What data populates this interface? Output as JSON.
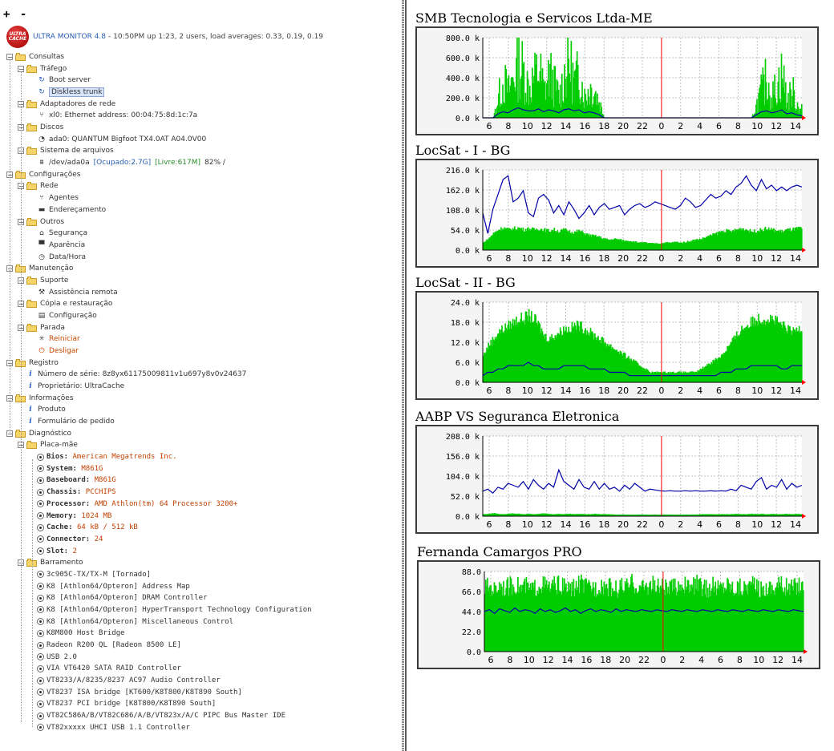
{
  "toolbar": {
    "expand_label": "+",
    "collapse_label": "-"
  },
  "header": {
    "logo_text": "ULTRA CACHE",
    "app_title": "ULTRA MONITOR 4.8",
    "status": "- 10:50PM up 1:23, 2 users, load averages: 0.33, 0.19, 0.19"
  },
  "tree": {
    "consultas": "Consultas",
    "trafego": "Tráfego",
    "bootserver": "Boot server",
    "diskless": "Diskless trunk",
    "adaptadores": "Adaptadores de rede",
    "xl0": "xl0: Ethernet address: 00:04:75:8d:1c:7a",
    "discos": "Discos",
    "ada0": "ada0: QUANTUM Bigfoot TX4.0AT A04.0V00",
    "sistema": "Sistema de arquivos",
    "fs_path": "/dev/ada0a",
    "fs_used": "[Ocupado:2.7G]",
    "fs_free": "[Livre:617M]",
    "fs_pct": "82% /",
    "configuracoes": "Configurações",
    "rede": "Rede",
    "agentes": "Agentes",
    "enderecamento": "Endereçamento",
    "outros": "Outros",
    "seguranca": "Segurança",
    "aparencia": "Aparência",
    "datahora": "Data/Hora",
    "manutencao": "Manutenção",
    "suporte": "Suporte",
    "assistencia": "Assistência remota",
    "copia": "Cópia e restauração",
    "configuracao": "Configuração",
    "parada": "Parada",
    "reiniciar": "Reiniciar",
    "desligar": "Desligar",
    "registro": "Registro",
    "serie": "Número de série: 8z8yx61175009811v1u697y8v0v24637",
    "proprietario": "Proprietário: UltraCache",
    "informacoes": "Informações",
    "produto": "Produto",
    "formulario": "Formulário de pedido",
    "diagnostico": "Diagnóstico",
    "placa": "Placa-mãe",
    "barramento": "Barramento"
  },
  "board": [
    {
      "key": "Bios:",
      "value": "American Megatrends Inc."
    },
    {
      "key": "System:",
      "value": "M861G"
    },
    {
      "key": "Baseboard:",
      "value": "M861G"
    },
    {
      "key": "Chassis:",
      "value": "PCCHIPS"
    },
    {
      "key": "Processor:",
      "value": "AMD Athlon(tm) 64 Processor 3200+"
    },
    {
      "key": "Memory:",
      "value": "1024 MB"
    },
    {
      "key": "Cache:",
      "value": "64 kB / 512 kB"
    },
    {
      "key": "Connector:",
      "value": "24"
    },
    {
      "key": "Slot:",
      "value": "2"
    }
  ],
  "bus": [
    "3c905C-TX/TX-M [Tornado]",
    "K8 [Athlon64/Opteron] Address Map",
    "K8 [Athlon64/Opteron] DRAM Controller",
    "K8 [Athlon64/Opteron] HyperTransport Technology Configuration",
    "K8 [Athlon64/Opteron] Miscellaneous Control",
    "K8M800 Host Bridge",
    "Radeon R200 QL [Radeon 8500 LE]",
    "USB 2.0",
    "VIA VT6420 SATA RAID Controller",
    "VT8233/A/8235/8237 AC97 Audio Controller",
    "VT8237 ISA bridge [KT600/K8T800/K8T890 South]",
    "VT8237 PCI bridge [K8T800/K8T890 South]",
    "VT82C586A/B/VT82C686/A/B/VT823x/A/C PIPC Bus Master IDE",
    "VT82xxxxx UHCI USB 1.1 Controller"
  ],
  "colors": {
    "in_fill": "#00cc00",
    "out_line": "#0000aa",
    "now_line": "#ff0000"
  },
  "chart_data": [
    {
      "type": "area",
      "title": "SMB Tecnologia e Servicos Ltda-ME",
      "ylim": [
        0,
        800
      ],
      "yticks": [
        "800.0 k",
        "600.0 k",
        "400.0 k",
        "200.0 k",
        "0.0 k"
      ],
      "xticks": [
        "6",
        "8",
        "10",
        "12",
        "14",
        "16",
        "18",
        "20",
        "22",
        "0",
        "2",
        "4",
        "6",
        "8",
        "10",
        "12",
        "14"
      ],
      "series": [
        {
          "profile": "bursty",
          "values": [
            0,
            0,
            0,
            300,
            520,
            380,
            600,
            760,
            650,
            420,
            560,
            700,
            380,
            620,
            480,
            300,
            620,
            780,
            500,
            650,
            300,
            420,
            380,
            200,
            0,
            0,
            0,
            0,
            0,
            0,
            0,
            0,
            0,
            0,
            0,
            0,
            0,
            0,
            0,
            0,
            0,
            0,
            0,
            0,
            0,
            0,
            0,
            0,
            0,
            0,
            0,
            0,
            0,
            0,
            200,
            400,
            560,
            300,
            480,
            620,
            250,
            380,
            180,
            140
          ]
        },
        {
          "profile": "line",
          "values": [
            0,
            0,
            0,
            40,
            60,
            50,
            80,
            100,
            80,
            70,
            70,
            90,
            60,
            80,
            70,
            50,
            80,
            90,
            70,
            80,
            50,
            60,
            50,
            30,
            0,
            0,
            0,
            0,
            0,
            0,
            0,
            0,
            0,
            0,
            0,
            0,
            0,
            0,
            0,
            0,
            0,
            0,
            0,
            0,
            0,
            0,
            0,
            0,
            0,
            0,
            0,
            0,
            0,
            0,
            30,
            60,
            70,
            50,
            60,
            80,
            40,
            50,
            30,
            20
          ]
        }
      ]
    },
    {
      "type": "area",
      "title": "LocSat - I - BG",
      "ylim": [
        0,
        216
      ],
      "yticks": [
        "216.0 k",
        "162.0 k",
        "108.0 k",
        "54.0 k",
        "0.0 k"
      ],
      "xticks": [
        "6",
        "8",
        "10",
        "12",
        "14",
        "16",
        "18",
        "20",
        "22",
        "0",
        "2",
        "4",
        "6",
        "8",
        "10",
        "12",
        "14"
      ],
      "series": [
        {
          "profile": "fill",
          "values": [
            20,
            30,
            45,
            55,
            60,
            55,
            58,
            60,
            55,
            58,
            55,
            58,
            55,
            52,
            55,
            50,
            55,
            50,
            48,
            52,
            45,
            40,
            38,
            35,
            30,
            28,
            30,
            28,
            25,
            25,
            22,
            20,
            20,
            18,
            18,
            18,
            20,
            20,
            22,
            20,
            22,
            25,
            28,
            30,
            35,
            40,
            45,
            50,
            52,
            50,
            55,
            58,
            55,
            50,
            52,
            55,
            58,
            55,
            52,
            50,
            55,
            55,
            58,
            60
          ]
        },
        {
          "profile": "line",
          "values": [
            100,
            45,
            110,
            150,
            190,
            200,
            130,
            140,
            160,
            100,
            90,
            140,
            150,
            135,
            100,
            120,
            95,
            130,
            110,
            85,
            100,
            120,
            95,
            115,
            125,
            110,
            115,
            120,
            95,
            110,
            120,
            125,
            115,
            120,
            130,
            125,
            120,
            115,
            110,
            120,
            140,
            130,
            115,
            120,
            135,
            150,
            140,
            145,
            160,
            150,
            170,
            180,
            200,
            175,
            160,
            190,
            165,
            175,
            160,
            170,
            160,
            170,
            175,
            170
          ]
        }
      ]
    },
    {
      "type": "area",
      "title": "LocSat - II - BG",
      "ylim": [
        0,
        24
      ],
      "yticks": [
        "24.0 k",
        "18.0 k",
        "12.0 k",
        "6.0 k",
        "0.0 k"
      ],
      "xticks": [
        "6",
        "8",
        "10",
        "12",
        "14",
        "16",
        "18",
        "20",
        "22",
        "0",
        "2",
        "4",
        "6",
        "8",
        "10",
        "12",
        "14"
      ],
      "series": [
        {
          "profile": "fill",
          "values": [
            8,
            11,
            13,
            15,
            16,
            17,
            18,
            19,
            19,
            20,
            19,
            17,
            14,
            13,
            14,
            15,
            16,
            16,
            17,
            17,
            16,
            15,
            14,
            13,
            12,
            11,
            10,
            9,
            8,
            7,
            6,
            5,
            4,
            3,
            3,
            3,
            3,
            3,
            3,
            3,
            3,
            3,
            3,
            4,
            5,
            6,
            7,
            8,
            10,
            12,
            14,
            16,
            17,
            18,
            19,
            19,
            19,
            19,
            18,
            17,
            16,
            15,
            16,
            17
          ]
        },
        {
          "profile": "line",
          "values": [
            2,
            3,
            3,
            4,
            4,
            5,
            5,
            5,
            5,
            6,
            5,
            5,
            4,
            4,
            4,
            4,
            5,
            5,
            5,
            5,
            5,
            4,
            4,
            4,
            4,
            3,
            3,
            3,
            3,
            2,
            2,
            2,
            2,
            2,
            2,
            2,
            2,
            2,
            2,
            2,
            2,
            2,
            2,
            2,
            2,
            2,
            2,
            3,
            3,
            3,
            4,
            4,
            4,
            5,
            5,
            5,
            5,
            5,
            5,
            4,
            4,
            5,
            5,
            5
          ]
        }
      ]
    },
    {
      "type": "area",
      "title": "AABP VS Seguranca Eletronica",
      "ylim": [
        0,
        208
      ],
      "yticks": [
        "208.0 k",
        "156.0 k",
        "104.0 k",
        "52.0 k",
        "0.0 k"
      ],
      "xticks": [
        "6",
        "8",
        "10",
        "12",
        "14",
        "16",
        "18",
        "20",
        "22",
        "0",
        "2",
        "4",
        "6",
        "8",
        "10",
        "12",
        "14"
      ],
      "series": [
        {
          "profile": "fill",
          "values": [
            5,
            6,
            8,
            6,
            5,
            6,
            7,
            6,
            5,
            6,
            5,
            6,
            7,
            6,
            5,
            6,
            5,
            6,
            5,
            6,
            5,
            5,
            6,
            5,
            5,
            5,
            4,
            4,
            4,
            4,
            4,
            4,
            4,
            4,
            4,
            4,
            4,
            4,
            4,
            4,
            4,
            4,
            4,
            5,
            5,
            5,
            5,
            5,
            5,
            5,
            6,
            5,
            5,
            6,
            5,
            6,
            5,
            6,
            5,
            5,
            6,
            5,
            6,
            5
          ]
        },
        {
          "profile": "line",
          "values": [
            65,
            70,
            60,
            75,
            70,
            85,
            80,
            75,
            90,
            70,
            95,
            80,
            70,
            85,
            75,
            120,
            90,
            80,
            70,
            95,
            75,
            70,
            90,
            70,
            85,
            70,
            75,
            65,
            80,
            70,
            85,
            75,
            65,
            70,
            68,
            66,
            65,
            66,
            65,
            65,
            66,
            65,
            66,
            65,
            65,
            66,
            65,
            66,
            65,
            70,
            66,
            80,
            75,
            70,
            90,
            100,
            70,
            80,
            75,
            95,
            70,
            85,
            75,
            80
          ]
        }
      ]
    },
    {
      "type": "area",
      "title": "Fernanda Camargos PRO",
      "ylim": [
        0,
        88
      ],
      "yticks": [
        "88.0",
        "66.0",
        "44.0",
        "22.0",
        "0.0"
      ],
      "xticks": [
        "6",
        "8",
        "10",
        "12",
        "14",
        "16",
        "18",
        "20",
        "22",
        "0",
        "2",
        "4",
        "6",
        "8",
        "10",
        "12",
        "14"
      ],
      "series": [
        {
          "profile": "spiky",
          "values": [
            70,
            72,
            68,
            75,
            70,
            72,
            74,
            70,
            72,
            68,
            70,
            75,
            72,
            70,
            74,
            72,
            70,
            68,
            72,
            75,
            70,
            72,
            70,
            74,
            72,
            70,
            68,
            72,
            70,
            75,
            72,
            70,
            72,
            74,
            70,
            72,
            68,
            70,
            72,
            75,
            70,
            72,
            74,
            70,
            68,
            72,
            70,
            72,
            75,
            70,
            72,
            70,
            74,
            72,
            70,
            68,
            72,
            70,
            75,
            72,
            70,
            72,
            74,
            70
          ]
        },
        {
          "profile": "line",
          "values": [
            44,
            46,
            42,
            47,
            45,
            43,
            48,
            44,
            46,
            45,
            42,
            47,
            44,
            46,
            43,
            45,
            48,
            44,
            46,
            42,
            45,
            47,
            44,
            46,
            45,
            43,
            47,
            44,
            46,
            45,
            44,
            46,
            45,
            44,
            46,
            45,
            44,
            46,
            45,
            44,
            46,
            45,
            44,
            46,
            45,
            44,
            46,
            45,
            44,
            46,
            45,
            44,
            46,
            45,
            44,
            46,
            45,
            44,
            46,
            45,
            44,
            46,
            45,
            44
          ]
        }
      ]
    }
  ]
}
